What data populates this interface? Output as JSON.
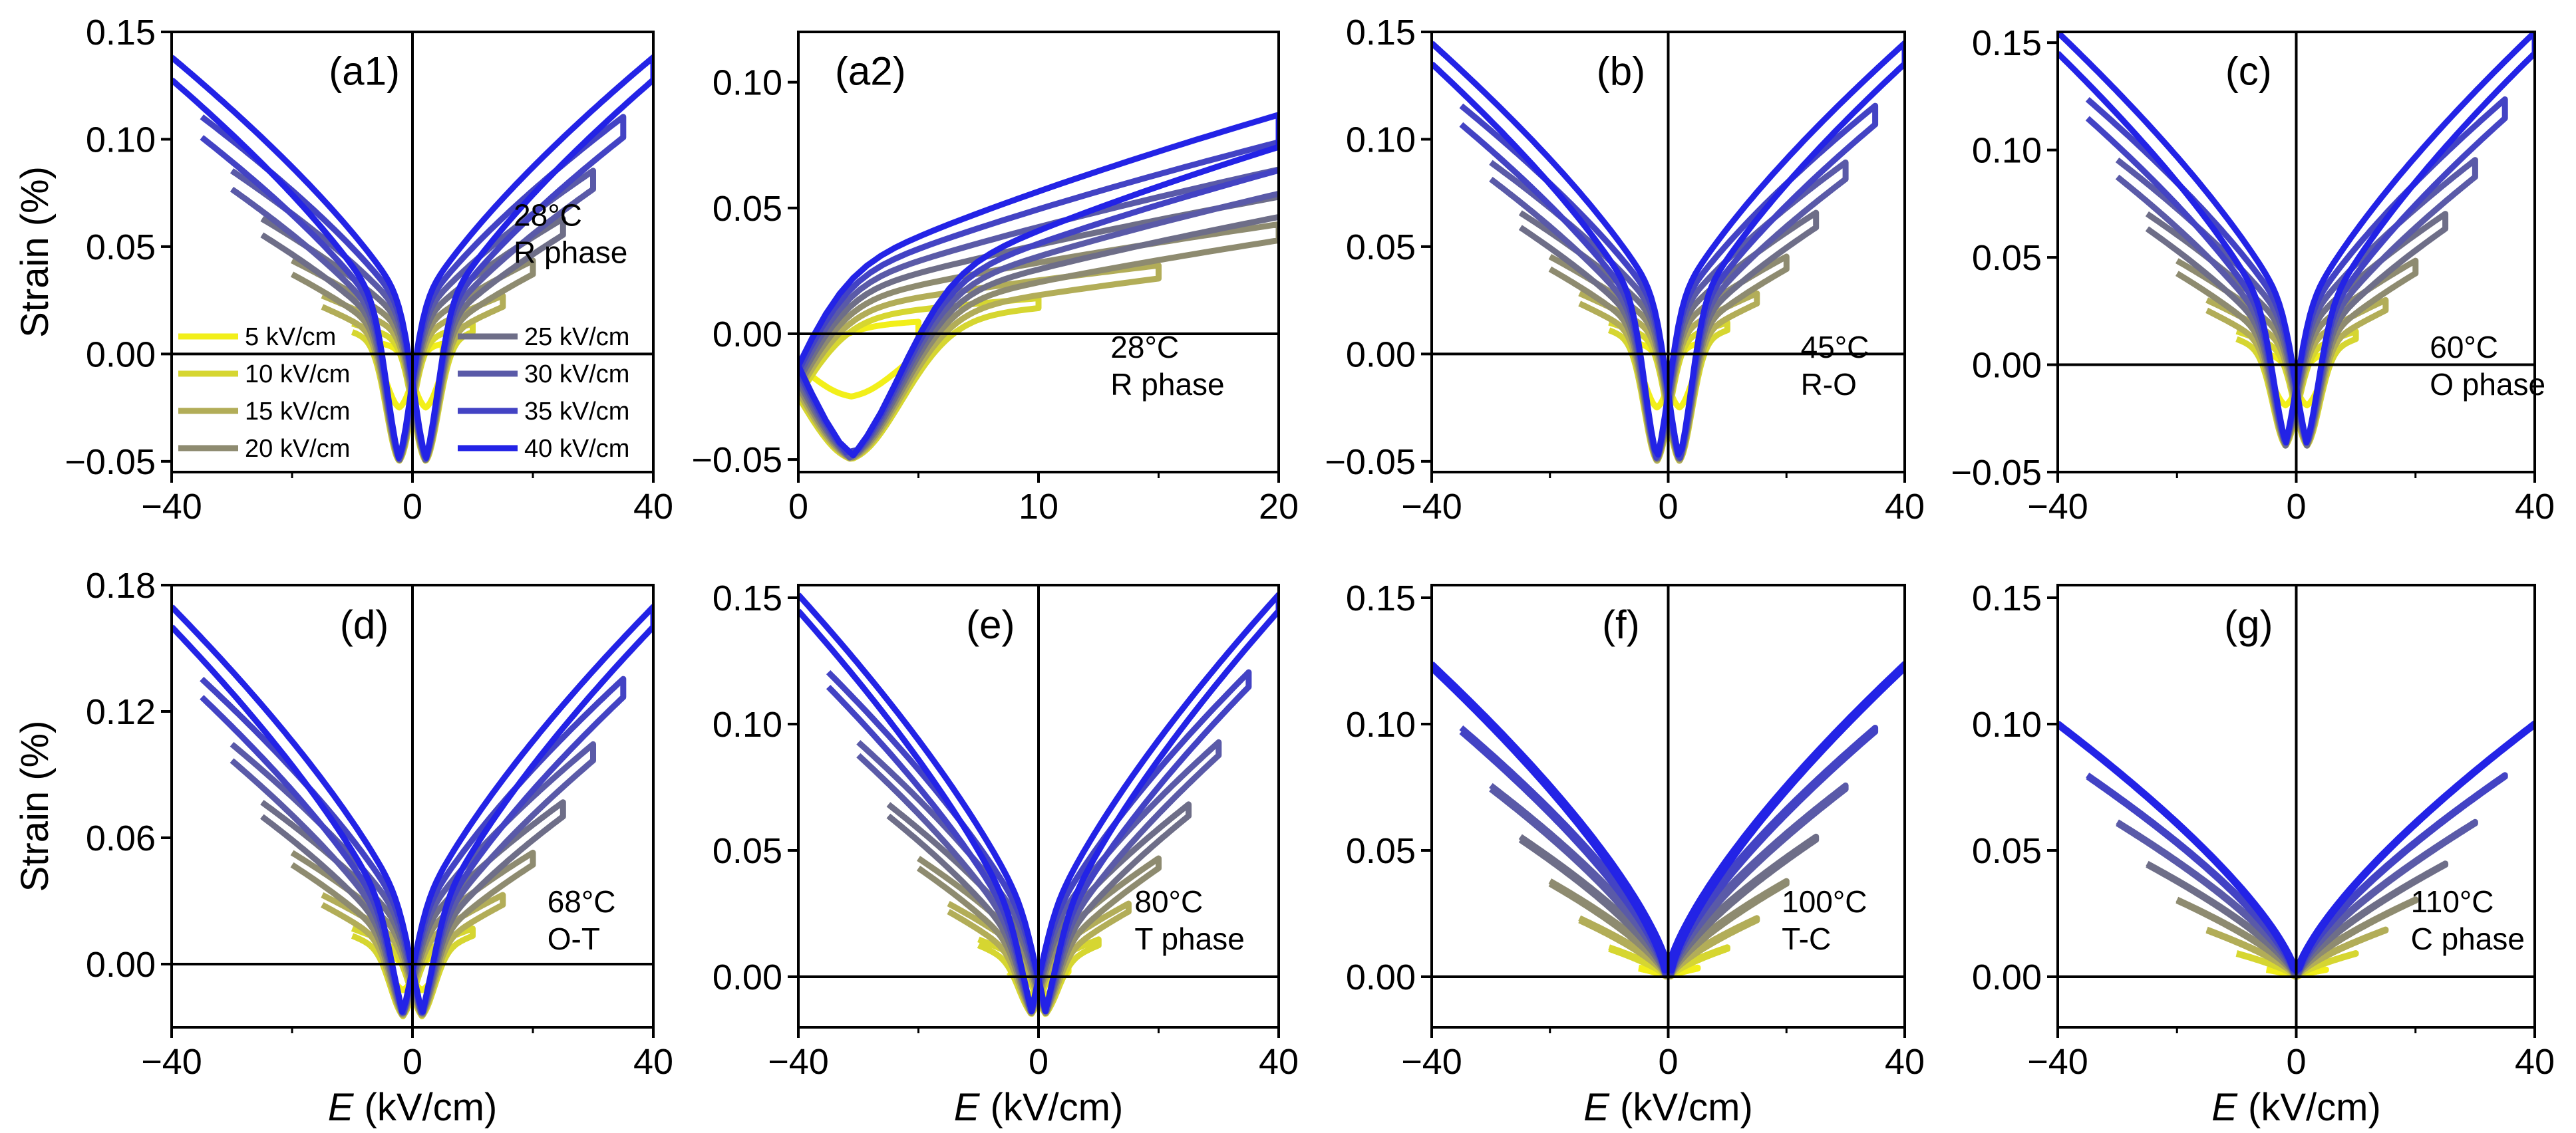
{
  "legend": {
    "entries": [
      {
        "label": "5 kV/cm",
        "color": "#f2ef1a"
      },
      {
        "label": "10 kV/cm",
        "color": "#d6d631"
      },
      {
        "label": "15 kV/cm",
        "color": "#b2ad58"
      },
      {
        "label": "20 kV/cm",
        "color": "#8e8b70"
      },
      {
        "label": "25 kV/cm",
        "color": "#6e6e88"
      },
      {
        "label": "30 kV/cm",
        "color": "#5a5aa8"
      },
      {
        "label": "35 kV/cm",
        "color": "#4343c4"
      },
      {
        "label": "40 kV/cm",
        "color": "#2323e6"
      }
    ]
  },
  "ylabel": "Strain (%)",
  "xlabel_italic": "E",
  "xlabel_rest": " (kV/cm)",
  "chart_data": [
    {
      "panel": "(a1)",
      "type": "line",
      "title": "",
      "annotation": [
        "28°C",
        "R phase"
      ],
      "xlim": [
        -40,
        40
      ],
      "ylim": [
        -0.055,
        0.15
      ],
      "xticks": [
        -40,
        0,
        40
      ],
      "xtick_labels": [
        "−40",
        "0",
        "40"
      ],
      "yticks": [
        -0.05,
        0,
        0.05,
        0.1,
        0.15
      ],
      "ytick_labels": [
        "−0.05",
        "0.00",
        "0.05",
        "0.10",
        "0.15"
      ],
      "smax": 0.133,
      "smin": -0.05,
      "ec": 2.2,
      "amplitudes": [
        5,
        10,
        15,
        20,
        25,
        30,
        35,
        40
      ]
    },
    {
      "panel": "(a2)",
      "type": "line",
      "title": "",
      "annotation": [
        "28°C",
        "R phase"
      ],
      "xlim": [
        0,
        20
      ],
      "ylim": [
        -0.055,
        0.12
      ],
      "xticks": [
        0,
        10,
        20
      ],
      "xtick_labels": [
        "0",
        "10",
        "20"
      ],
      "yticks": [
        -0.05,
        0,
        0.05,
        0.1
      ],
      "ytick_labels": [
        "−0.05",
        "0.00",
        "0.05",
        "0.10"
      ],
      "smax": 0.133,
      "smin": -0.05,
      "ec": 2.2,
      "amplitudes": [
        5,
        10,
        15,
        20,
        25,
        30,
        35,
        40
      ]
    },
    {
      "panel": "(b)",
      "type": "line",
      "title": "",
      "annotation": [
        "45°C",
        "R-O"
      ],
      "xlim": [
        -40,
        40
      ],
      "ylim": [
        -0.055,
        0.15
      ],
      "xticks": [
        -40,
        0,
        40
      ],
      "xtick_labels": [
        "−40",
        "0",
        "40"
      ],
      "yticks": [
        -0.05,
        0,
        0.05,
        0.1,
        0.15
      ],
      "ytick_labels": [
        "−0.05",
        "0.00",
        "0.05",
        "0.10",
        "0.15"
      ],
      "smax": 0.14,
      "smin": -0.05,
      "ec": 1.9,
      "amplitudes": [
        5,
        10,
        15,
        20,
        25,
        30,
        35,
        40
      ]
    },
    {
      "panel": "(c)",
      "type": "line",
      "title": "",
      "annotation": [
        "60°C",
        "O phase"
      ],
      "xlim": [
        -40,
        40
      ],
      "ylim": [
        -0.05,
        0.155
      ],
      "xticks": [
        -40,
        0,
        40
      ],
      "xtick_labels": [
        "−40",
        "0",
        "40"
      ],
      "yticks": [
        -0.05,
        0,
        0.05,
        0.1,
        0.15
      ],
      "ytick_labels": [
        "−0.05",
        "0.00",
        "0.05",
        "0.10",
        "0.15"
      ],
      "smax": 0.15,
      "smin": -0.038,
      "ec": 1.8,
      "amplitudes": [
        5,
        10,
        15,
        20,
        25,
        30,
        35,
        40
      ]
    },
    {
      "panel": "(d)",
      "type": "line",
      "title": "",
      "annotation": [
        "68°C",
        "O-T"
      ],
      "xlim": [
        -40,
        40
      ],
      "ylim": [
        -0.03,
        0.18
      ],
      "xticks": [
        -40,
        0,
        40
      ],
      "xtick_labels": [
        "−40",
        "0",
        "40"
      ],
      "yticks": [
        0,
        0.06,
        0.12,
        0.18
      ],
      "ytick_labels": [
        "0.00",
        "0.06",
        "0.12",
        "0.18"
      ],
      "smax": 0.165,
      "smin": -0.025,
      "ec": 1.6,
      "amplitudes": [
        5,
        10,
        15,
        20,
        25,
        30,
        35,
        40
      ]
    },
    {
      "panel": "(e)",
      "type": "line",
      "title": "",
      "annotation": [
        "80°C",
        "T phase"
      ],
      "xlim": [
        -40,
        40
      ],
      "ylim": [
        -0.02,
        0.155
      ],
      "xticks": [
        -40,
        0,
        40
      ],
      "xtick_labels": [
        "−40",
        "0",
        "40"
      ],
      "yticks": [
        0,
        0.05,
        0.1,
        0.15
      ],
      "ytick_labels": [
        "0.00",
        "0.05",
        "0.10",
        "0.15"
      ],
      "smax": 0.148,
      "smin": -0.015,
      "ec": 1.2,
      "amplitudes": [
        5,
        10,
        15,
        20,
        25,
        30,
        35,
        40
      ]
    },
    {
      "panel": "(f)",
      "type": "line",
      "title": "",
      "annotation": [
        "100°C",
        "T-C"
      ],
      "xlim": [
        -40,
        40
      ],
      "ylim": [
        -0.02,
        0.155
      ],
      "xticks": [
        -40,
        0,
        40
      ],
      "xtick_labels": [
        "−40",
        "0",
        "40"
      ],
      "yticks": [
        0,
        0.05,
        0.1,
        0.15
      ],
      "ytick_labels": [
        "0.00",
        "0.05",
        "0.10",
        "0.15"
      ],
      "smax": 0.123,
      "smin": 0.0,
      "ec": 0.4,
      "amplitudes": [
        5,
        10,
        15,
        20,
        25,
        30,
        35,
        40
      ]
    },
    {
      "panel": "(g)",
      "type": "line",
      "title": "",
      "annotation": [
        "110°C",
        "C phase"
      ],
      "xlim": [
        -40,
        40
      ],
      "ylim": [
        -0.02,
        0.155
      ],
      "xticks": [
        -40,
        0,
        40
      ],
      "xtick_labels": [
        "−40",
        "0",
        "40"
      ],
      "yticks": [
        0,
        0.05,
        0.1,
        0.15
      ],
      "ytick_labels": [
        "0.00",
        "0.05",
        "0.10",
        "0.15"
      ],
      "smax": 0.1,
      "smin": 0.0,
      "ec": 0.2,
      "amplitudes": [
        5,
        10,
        15,
        20,
        25,
        30,
        35,
        40
      ]
    }
  ]
}
